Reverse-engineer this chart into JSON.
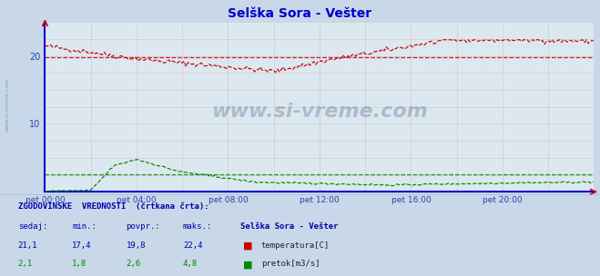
{
  "title": "Selška Sora - Vešter",
  "title_color": "#0000cc",
  "bg_color": "#c8d8e8",
  "plot_bg_color": "#dce8f0",
  "grid_color": "#d08080",
  "grid_color2": "#c0b8c8",
  "ylabel_color": "#2244aa",
  "xlabel_color": "#2244aa",
  "temp_color": "#cc0000",
  "flow_color": "#008800",
  "ylim": [
    0,
    25
  ],
  "xlim": [
    0,
    288
  ],
  "x_ticks": [
    0,
    48,
    96,
    144,
    192,
    240
  ],
  "x_tick_labels": [
    "pet 00:00",
    "pet 04:00",
    "pet 08:00",
    "pet 12:00",
    "pet 16:00",
    "pet 20:00"
  ],
  "y_ticks": [
    10,
    20
  ],
  "temp_avg": 19.8,
  "flow_avg": 2.6,
  "temp_max": 22.4,
  "flow_max": 4.8,
  "temp_current": 21.1,
  "flow_current": 2.1,
  "temp_min": 17.4,
  "flow_min": 1.8,
  "watermark": "www.si-vreme.com",
  "watermark_color": "#1a3a6a",
  "sidebar_text": "www.si-vreme.com",
  "sidebar_color": "#6688aa",
  "table_header": "ZGODOVINSKE  VREDNOSTI  (črtkana črta):",
  "table_header_color": "#0000aa",
  "col_headers": [
    "sedaj:",
    "min.:",
    "povpr.:",
    "maks.:",
    "Selška Sora - Vešter"
  ],
  "col_header_color": "#0000aa",
  "row1_vals": [
    "21,1",
    "17,4",
    "19,8",
    "22,4"
  ],
  "row1_color": "#0000aa",
  "row2_vals": [
    "2,1",
    "1,8",
    "2,6",
    "4,8"
  ],
  "row2_color": "#008800",
  "legend_items": [
    {
      "label": "temperatura[C]",
      "color": "#cc0000"
    },
    {
      "label": "pretok[m3/s]",
      "color": "#008800"
    }
  ],
  "spine_color": "#0000cc",
  "arrow_color": "#cc0000"
}
